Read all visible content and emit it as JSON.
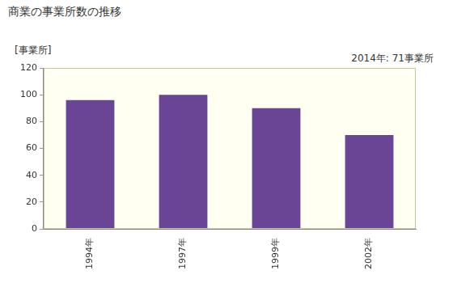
{
  "chart_data": {
    "type": "bar",
    "title": "商業の事業所数の推移",
    "y_label": "[事業所]",
    "annotation": "2014年: 71事業所",
    "categories": [
      "1994年",
      "1997年",
      "1999年",
      "2002年"
    ],
    "values": [
      96,
      100,
      90,
      70
    ],
    "color": "#6a4495",
    "ylim": [
      0,
      120
    ],
    "yticks": [
      0,
      20,
      40,
      60,
      80,
      100,
      120
    ],
    "grid": false
  }
}
